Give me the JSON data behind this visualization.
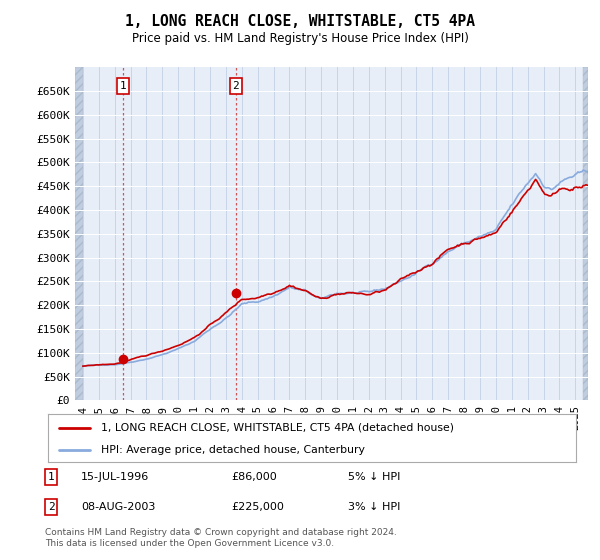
{
  "title": "1, LONG REACH CLOSE, WHITSTABLE, CT5 4PA",
  "subtitle": "Price paid vs. HM Land Registry's House Price Index (HPI)",
  "legend_line1": "1, LONG REACH CLOSE, WHITSTABLE, CT5 4PA (detached house)",
  "legend_line2": "HPI: Average price, detached house, Canterbury",
  "footnote": "Contains HM Land Registry data © Crown copyright and database right 2024.\nThis data is licensed under the Open Government Licence v3.0.",
  "sale1_label": "1",
  "sale1_date": "15-JUL-1996",
  "sale1_price": "£86,000",
  "sale1_hpi": "5% ↓ HPI",
  "sale2_label": "2",
  "sale2_date": "08-AUG-2003",
  "sale2_price": "£225,000",
  "sale2_hpi": "3% ↓ HPI",
  "price_color": "#cc0000",
  "hpi_color": "#88aadd",
  "sale_marker_color": "#cc0000",
  "ylim_min": 0,
  "ylim_max": 700000,
  "yticks": [
    0,
    50000,
    100000,
    150000,
    200000,
    250000,
    300000,
    350000,
    400000,
    450000,
    500000,
    550000,
    600000,
    650000
  ],
  "background_color": "#ffffff",
  "plot_bg_color": "#e8eef8",
  "grid_color": "#d0d8e8",
  "sale1_x": 1996.54,
  "sale1_y": 86000,
  "sale2_x": 2003.62,
  "sale2_y": 225000,
  "xlim_min": 1993.5,
  "xlim_max": 2025.8
}
